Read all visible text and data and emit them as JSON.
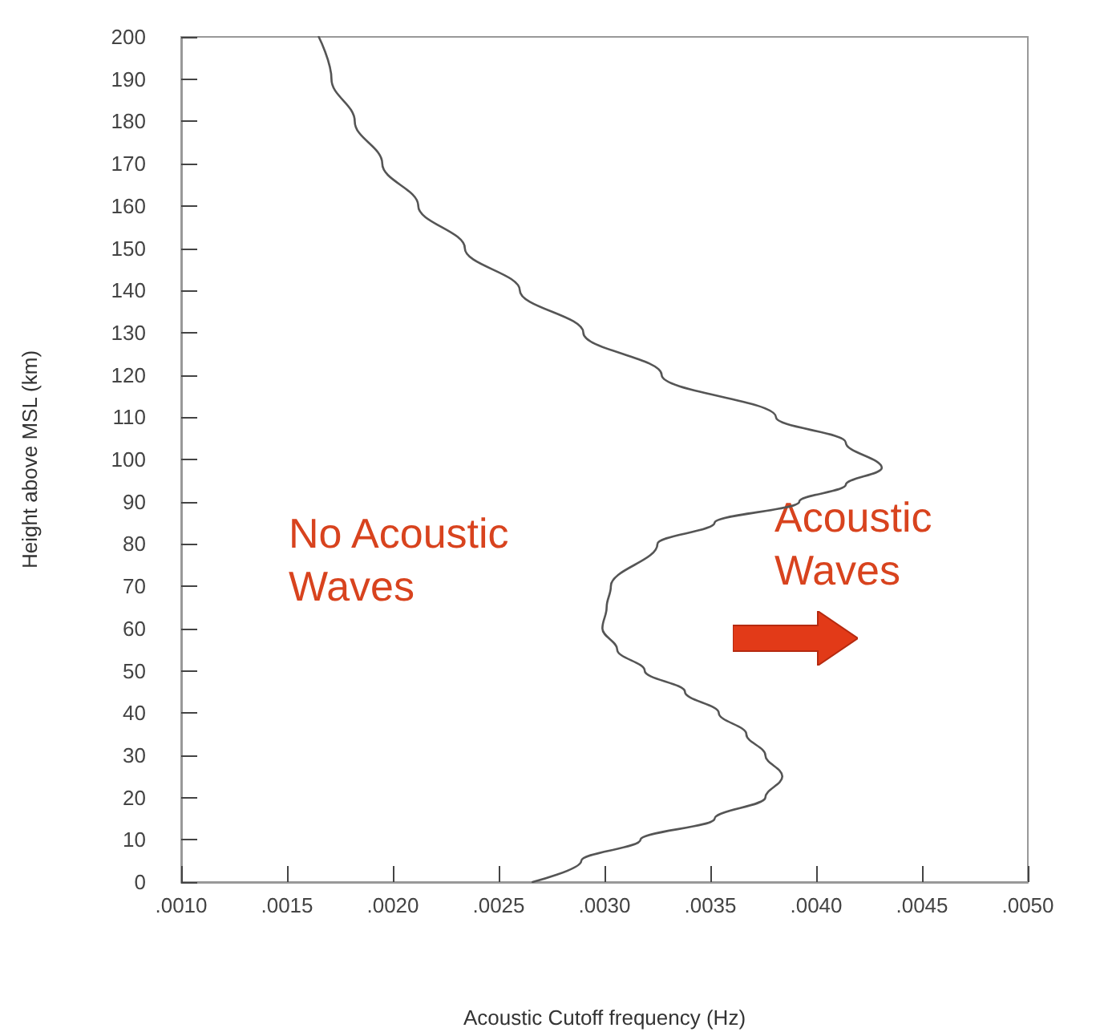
{
  "chart_data": {
    "type": "line",
    "xlabel": "Acoustic Cutoff frequency (Hz)",
    "ylabel": "Height above MSL (km)",
    "xlim": [
      0.001,
      0.005
    ],
    "xticks": [
      {
        "value": 0.001,
        "label": ".0010"
      },
      {
        "value": 0.0015,
        "label": ".0015"
      },
      {
        "value": 0.002,
        "label": ".0020"
      },
      {
        "value": 0.0025,
        "label": ".0025"
      },
      {
        "value": 0.003,
        "label": ".0030"
      },
      {
        "value": 0.0035,
        "label": ".0035"
      },
      {
        "value": 0.004,
        "label": ".0040"
      },
      {
        "value": 0.0045,
        "label": ".0045"
      },
      {
        "value": 0.005,
        "label": ".0050"
      }
    ],
    "ylim": [
      0,
      200
    ],
    "yticks": [
      0,
      10,
      20,
      30,
      40,
      50,
      60,
      70,
      80,
      90,
      100,
      110,
      120,
      130,
      140,
      150,
      160,
      170,
      180,
      190,
      200
    ],
    "grid": false,
    "marker": "none",
    "line_style": "solid",
    "annotations": [
      "No Acoustic Waves",
      "Acoustic Waves"
    ],
    "series": [
      {
        "color": "#555555",
        "x": [
          0.00266,
          0.00289,
          0.00317,
          0.00352,
          0.00376,
          0.00384,
          0.00376,
          0.00367,
          0.00354,
          0.00338,
          0.00319,
          0.00306,
          0.00299,
          0.00301,
          0.00303,
          0.00325,
          0.00352,
          0.00392,
          0.00414,
          0.00431,
          0.00414,
          0.00381,
          0.00327,
          0.0029,
          0.0026,
          0.00234,
          0.00212,
          0.00195,
          0.00182,
          0.00171,
          0.00165
        ],
        "values": [
          0,
          5,
          10,
          15,
          20,
          25,
          30,
          35,
          40,
          45,
          50,
          55,
          60,
          65,
          70,
          80,
          85,
          90,
          94,
          98,
          104,
          110,
          120,
          130,
          140,
          150,
          160,
          170,
          180,
          190,
          200
        ]
      }
    ]
  }
}
